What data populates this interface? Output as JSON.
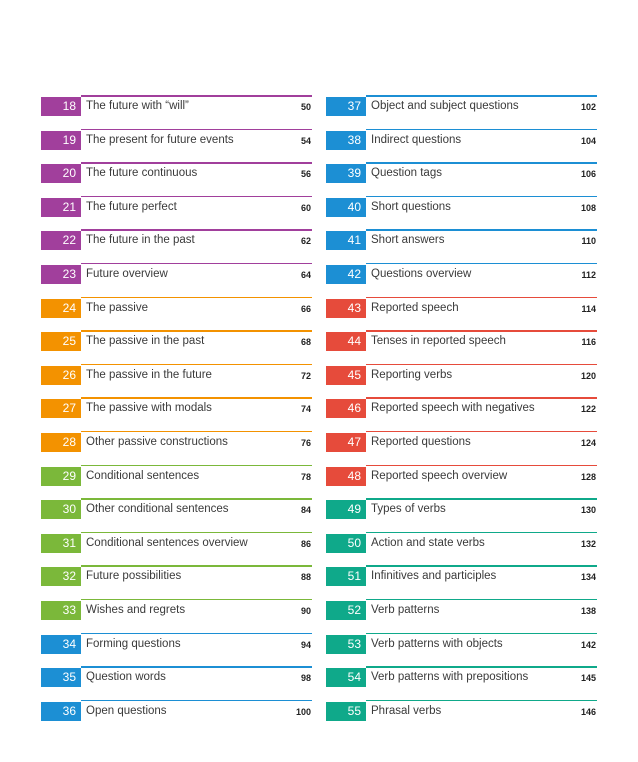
{
  "colors": {
    "purple": "#a13f9c",
    "orange": "#f39200",
    "green": "#7bb83a",
    "blue": "#1c8fd4",
    "red": "#e64b3b",
    "teal": "#0fa98a"
  },
  "toc": {
    "left": [
      {
        "number": "18",
        "title": "The future with “will”",
        "page": "50",
        "color": "#a13f9c"
      },
      {
        "number": "19",
        "title": "The present for future events",
        "page": "54",
        "color": "#a13f9c"
      },
      {
        "number": "20",
        "title": "The future continuous",
        "page": "56",
        "color": "#a13f9c"
      },
      {
        "number": "21",
        "title": "The future perfect",
        "page": "60",
        "color": "#a13f9c"
      },
      {
        "number": "22",
        "title": "The future in the past",
        "page": "62",
        "color": "#a13f9c"
      },
      {
        "number": "23",
        "title": "Future overview",
        "page": "64",
        "color": "#a13f9c"
      },
      {
        "number": "24",
        "title": "The passive",
        "page": "66",
        "color": "#f39200"
      },
      {
        "number": "25",
        "title": "The passive in the past",
        "page": "68",
        "color": "#f39200"
      },
      {
        "number": "26",
        "title": "The passive in the future",
        "page": "72",
        "color": "#f39200"
      },
      {
        "number": "27",
        "title": "The passive with modals",
        "page": "74",
        "color": "#f39200"
      },
      {
        "number": "28",
        "title": "Other passive constructions",
        "page": "76",
        "color": "#f39200"
      },
      {
        "number": "29",
        "title": "Conditional sentences",
        "page": "78",
        "color": "#7bb83a"
      },
      {
        "number": "30",
        "title": "Other conditional sentences",
        "page": "84",
        "color": "#7bb83a"
      },
      {
        "number": "31",
        "title": "Conditional sentences overview",
        "page": "86",
        "color": "#7bb83a"
      },
      {
        "number": "32",
        "title": "Future possibilities",
        "page": "88",
        "color": "#7bb83a"
      },
      {
        "number": "33",
        "title": "Wishes and regrets",
        "page": "90",
        "color": "#7bb83a"
      },
      {
        "number": "34",
        "title": "Forming questions",
        "page": "94",
        "color": "#1c8fd4"
      },
      {
        "number": "35",
        "title": "Question words",
        "page": "98",
        "color": "#1c8fd4"
      },
      {
        "number": "36",
        "title": "Open questions",
        "page": "100",
        "color": "#1c8fd4"
      }
    ],
    "right": [
      {
        "number": "37",
        "title": "Object and subject questions",
        "page": "102",
        "color": "#1c8fd4"
      },
      {
        "number": "38",
        "title": "Indirect questions",
        "page": "104",
        "color": "#1c8fd4"
      },
      {
        "number": "39",
        "title": "Question tags",
        "page": "106",
        "color": "#1c8fd4"
      },
      {
        "number": "40",
        "title": "Short questions",
        "page": "108",
        "color": "#1c8fd4"
      },
      {
        "number": "41",
        "title": "Short answers",
        "page": "110",
        "color": "#1c8fd4"
      },
      {
        "number": "42",
        "title": "Questions overview",
        "page": "112",
        "color": "#1c8fd4"
      },
      {
        "number": "43",
        "title": "Reported speech",
        "page": "114",
        "color": "#e64b3b"
      },
      {
        "number": "44",
        "title": "Tenses in reported speech",
        "page": "116",
        "color": "#e64b3b"
      },
      {
        "number": "45",
        "title": "Reporting verbs",
        "page": "120",
        "color": "#e64b3b"
      },
      {
        "number": "46",
        "title": "Reported speech with negatives",
        "page": "122",
        "color": "#e64b3b"
      },
      {
        "number": "47",
        "title": "Reported questions",
        "page": "124",
        "color": "#e64b3b"
      },
      {
        "number": "48",
        "title": "Reported speech overview",
        "page": "128",
        "color": "#e64b3b"
      },
      {
        "number": "49",
        "title": "Types of verbs",
        "page": "130",
        "color": "#0fa98a"
      },
      {
        "number": "50",
        "title": "Action and state verbs",
        "page": "132",
        "color": "#0fa98a"
      },
      {
        "number": "51",
        "title": "Infinitives and participles",
        "page": "134",
        "color": "#0fa98a"
      },
      {
        "number": "52",
        "title": "Verb patterns",
        "page": "138",
        "color": "#0fa98a"
      },
      {
        "number": "53",
        "title": "Verb patterns with objects",
        "page": "142",
        "color": "#0fa98a"
      },
      {
        "number": "54",
        "title": "Verb patterns with prepositions",
        "page": "145",
        "color": "#0fa98a"
      },
      {
        "number": "55",
        "title": "Phrasal verbs",
        "page": "146",
        "color": "#0fa98a"
      }
    ]
  }
}
